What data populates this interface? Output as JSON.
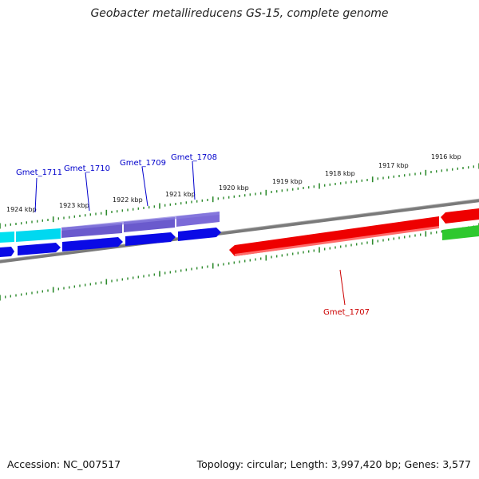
{
  "title": "Geobacter metallireducens GS-15, complete genome",
  "footer": {
    "accession": "Accession: NC_007517",
    "summary": "Topology: circular; Length: 3,997,420 bp; Genes: 3,577"
  },
  "colors": {
    "backbone": "#7a7a7a",
    "ticks": "#2e8b2e",
    "cds_blue": "#0a0ae6",
    "cds_lightblue_label": "#00d8f0",
    "cds_purple": "#6a5acd",
    "cds_red": "#ee0000",
    "cds_green": "#2ec82e",
    "label_blue": "#0000cc",
    "label_red": "#cc0000"
  },
  "ruler": {
    "labels": [
      "1924 kbp",
      "1923 kbp",
      "1922 kbp",
      "1921 kbp",
      "1920 kbp",
      "1919 kbp",
      "1918 kbp",
      "1917 kbp",
      "1916 kbp"
    ]
  },
  "genes": [
    {
      "name": "Gmet_1711",
      "strand": "forward",
      "color": "cds_lightblue_label",
      "label_color": "label_blue"
    },
    {
      "name": "Gmet_1710",
      "strand": "forward",
      "color": "cds_purple",
      "label_color": "label_blue"
    },
    {
      "name": "Gmet_1709",
      "strand": "forward",
      "color": "cds_purple",
      "label_color": "label_blue"
    },
    {
      "name": "Gmet_1708",
      "strand": "forward",
      "color": "cds_purple",
      "label_color": "label_blue"
    },
    {
      "name": "Gmet_1707",
      "strand": "reverse",
      "color": "cds_red",
      "label_color": "label_red"
    }
  ]
}
